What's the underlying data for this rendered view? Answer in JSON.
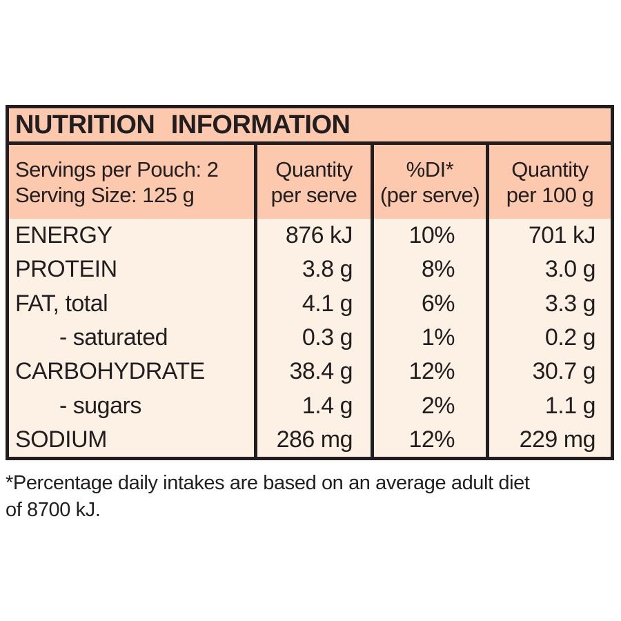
{
  "title": "NUTRITION INFORMATION",
  "table": {
    "header": {
      "servings_line1": "Servings per Pouch: 2",
      "servings_line2": "Serving Size: 125 g",
      "qty_serve_line1": "Quantity",
      "qty_serve_line2": "per serve",
      "di_line1": "%DI*",
      "di_line2": "(per serve)",
      "qty_100_line1": "Quantity",
      "qty_100_line2": "per 100 g"
    },
    "rows": [
      {
        "label": "ENERGY",
        "per_serve": "876 kJ",
        "di": "10%",
        "per_100g": "701 kJ"
      },
      {
        "label": "PROTEIN",
        "per_serve": "3.8 g",
        "di": "8%",
        "per_100g": "3.0 g"
      },
      {
        "label": "FAT, total",
        "per_serve": "4.1 g",
        "di": "6%",
        "per_100g": "3.3 g"
      },
      {
        "label": "- saturated",
        "per_serve": "0.3 g",
        "di": "1%",
        "per_100g": "0.2 g"
      },
      {
        "label": "CARBOHYDRATE",
        "per_serve": "38.4 g",
        "di": "12%",
        "per_100g": "30.7 g"
      },
      {
        "label": "- sugars",
        "per_serve": "1.4 g",
        "di": "2%",
        "per_100g": "1.1 g"
      },
      {
        "label": "SODIUM",
        "per_serve": "286 mg",
        "di": "12%",
        "per_100g": "229 mg"
      }
    ]
  },
  "footnote": {
    "line1": "*Percentage daily intakes are based on an average adult diet",
    "line2": "of 8700 kJ."
  },
  "colors": {
    "salmon_band": "#fcc8ae",
    "cream_body": "#fcf1e4",
    "ink": "#221e1f",
    "page_background": "#ffffff"
  }
}
